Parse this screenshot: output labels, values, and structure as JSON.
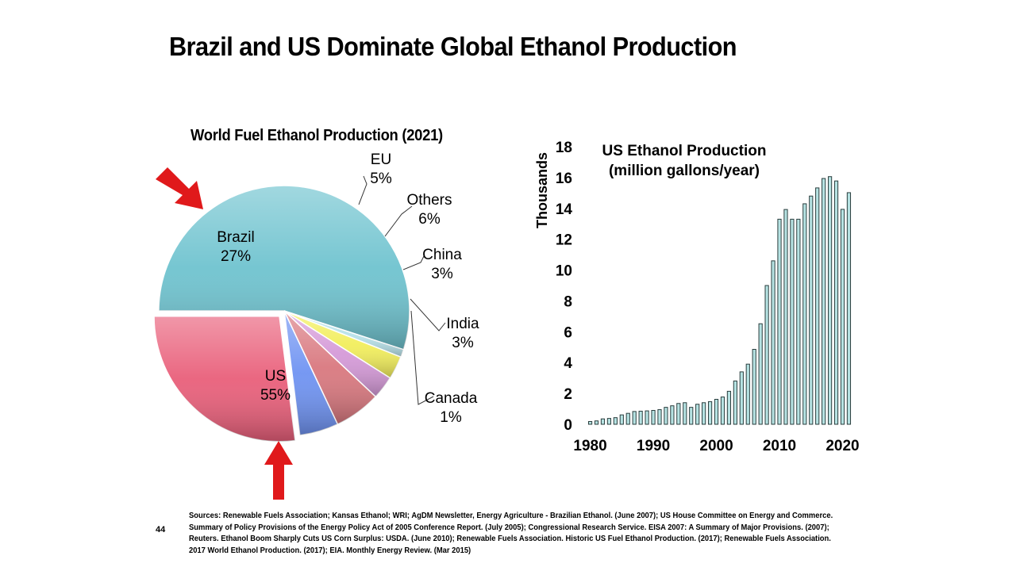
{
  "title": "Brazil and US Dominate Global Ethanol Production",
  "page_number": "44",
  "sources": "Sources: Renewable Fuels Association; Kansas Ethanol; WRI; AgDM Newsletter, Energy Agriculture - Brazilian Ethanol. (June 2007); US House Committee on Energy and Commerce. Summary of Policy Provisions of the Energy Policy Act of 2005 Conference Report. (July 2005); Congressional Research Service. EISA 2007: A Summary of Major Provisions. (2007); Reuters. Ethanol Boom Sharply Cuts US Corn Surplus: USDA. (June 2010); Renewable Fuels Association. Historic US Fuel Ethanol Production. (2017); Renewable Fuels Association. 2017 World Ethanol Production. (2017); EIA. Monthly Energy Review. (Mar 2015)",
  "chart_data": [
    {
      "type": "pie",
      "title": "World Fuel Ethanol Production (2021)",
      "slices": [
        {
          "label": "US",
          "value": 55,
          "value_label": "55%",
          "color": "#6fc3cf"
        },
        {
          "label": "Canada",
          "value": 1,
          "value_label": "1%",
          "color": "#b8e2ea"
        },
        {
          "label": "India",
          "value": 3,
          "value_label": "3%",
          "color": "#f2ee5c"
        },
        {
          "label": "China",
          "value": 3,
          "value_label": "3%",
          "color": "#d59ad8"
        },
        {
          "label": "Others",
          "value": 6,
          "value_label": "6%",
          "color": "#d9787f"
        },
        {
          "label": "EU",
          "value": 5,
          "value_label": "5%",
          "color": "#6f93f2"
        },
        {
          "label": "Brazil",
          "value": 27,
          "value_label": "27%",
          "color": "#e95f7a"
        }
      ],
      "arrow_color": "#e0191b"
    },
    {
      "type": "bar",
      "title": "US Ethanol Production",
      "subtitle": "(million gallons/year)",
      "ylabel": "Thousands",
      "ylim": [
        0,
        18
      ],
      "yticks": [
        "0",
        "2",
        "4",
        "6",
        "8",
        "10",
        "12",
        "14",
        "16",
        "18"
      ],
      "xticks": [
        "1980",
        "1990",
        "2000",
        "2010",
        "2020"
      ],
      "x": [
        1980,
        1981,
        1982,
        1983,
        1984,
        1985,
        1986,
        1987,
        1988,
        1989,
        1990,
        1991,
        1992,
        1993,
        1994,
        1995,
        1996,
        1997,
        1998,
        1999,
        2000,
        2001,
        2002,
        2003,
        2004,
        2005,
        2006,
        2007,
        2008,
        2009,
        2010,
        2011,
        2012,
        2013,
        2014,
        2015,
        2016,
        2017,
        2018,
        2019,
        2020,
        2021
      ],
      "values": [
        0.18,
        0.22,
        0.35,
        0.38,
        0.43,
        0.61,
        0.71,
        0.83,
        0.85,
        0.87,
        0.9,
        0.95,
        1.1,
        1.2,
        1.35,
        1.4,
        1.1,
        1.3,
        1.4,
        1.47,
        1.62,
        1.77,
        2.14,
        2.81,
        3.4,
        3.9,
        4.86,
        6.52,
        9.0,
        10.6,
        13.3,
        13.93,
        13.3,
        13.3,
        14.3,
        14.8,
        15.33,
        15.94,
        16.06,
        15.78,
        13.94,
        15.02
      ],
      "bar_color": "#b6e3e3",
      "bar_border": "#2b3e3e"
    }
  ]
}
